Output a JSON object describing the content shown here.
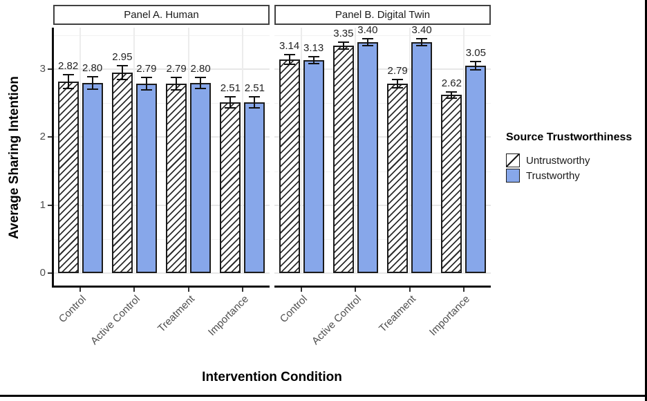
{
  "figure": {
    "y_axis_title": "Average Sharing Intention",
    "x_axis_title": "Intervention Condition",
    "y_tick_labels": [
      "0",
      "1",
      "2",
      "3"
    ],
    "legend": {
      "title": "Source Trustworthiness",
      "entries": [
        {
          "label": "Untrustworthy",
          "pattern": "diagonal-hatch"
        },
        {
          "label": "Trustworthy",
          "pattern": "solid-blue"
        }
      ]
    }
  },
  "chart_data": {
    "type": "bar",
    "title": "",
    "xlabel": "Intervention Condition",
    "ylabel": "Average Sharing Intention",
    "categories": [
      "Control",
      "Active Control",
      "Treatment",
      "Importance"
    ],
    "ylim": [
      0,
      3.6
    ],
    "y_ticks": [
      0,
      1,
      2,
      3
    ],
    "grid": {
      "major_y": [
        0,
        1,
        2,
        3
      ],
      "minor_y": [
        0.5,
        1.5,
        2.5,
        3.5
      ],
      "vertical_at_category_centers": true
    },
    "legend_position": "right",
    "error_bars": true,
    "panels": [
      {
        "title": "Panel A. Human",
        "series": [
          {
            "name": "Untrustworthy",
            "values": [
              2.82,
              2.95,
              2.79,
              2.51
            ],
            "labels": [
              "2.82",
              "2.95",
              "2.79",
              "2.51"
            ],
            "errors": [
              0.1,
              0.1,
              0.09,
              0.08
            ]
          },
          {
            "name": "Trustworthy",
            "values": [
              2.8,
              2.79,
              2.8,
              2.51
            ],
            "labels": [
              "2.80",
              "2.79",
              "2.80",
              "2.51"
            ],
            "errors": [
              0.09,
              0.09,
              0.08,
              0.08
            ]
          }
        ]
      },
      {
        "title": "Panel B. Digital Twin",
        "series": [
          {
            "name": "Untrustworthy",
            "values": [
              3.14,
              3.35,
              2.79,
              2.62
            ],
            "labels": [
              "3.14",
              "3.35",
              "2.79",
              "2.62"
            ],
            "errors": [
              0.07,
              0.05,
              0.06,
              0.05
            ]
          },
          {
            "name": "Trustworthy",
            "values": [
              3.13,
              3.4,
              3.4,
              3.05
            ],
            "labels": [
              "3.13",
              "3.40",
              "3.40",
              "3.05"
            ],
            "errors": [
              0.05,
              0.05,
              0.05,
              0.06
            ]
          }
        ]
      }
    ]
  },
  "colors": {
    "trustworthy_fill": "#87a7ea",
    "bar_outline": "#1a1a1a",
    "hatch_line": "#2b2b2b",
    "grid_major": "#e7e7e7",
    "grid_minor": "#f2f2f2",
    "tick_label": "#4d4d4d",
    "text": "#1a1a1a"
  }
}
